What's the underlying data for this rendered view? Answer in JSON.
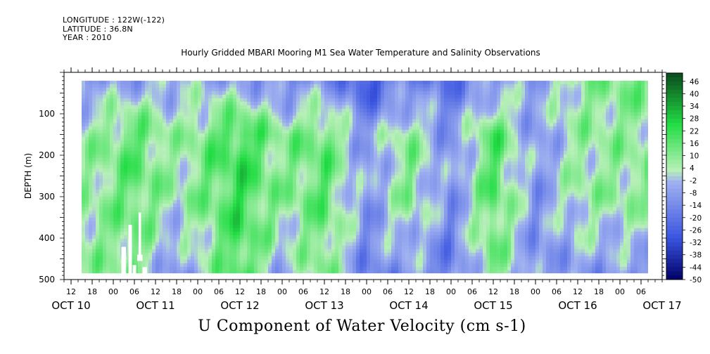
{
  "meta": {
    "longitude": "LONGITUDE : 122W(-122)",
    "latitude": "LATITUDE : 36.8N",
    "year": "YEAR : 2010"
  },
  "title": "Hourly Gridded MBARI Mooring M1 Sea Water Temperature and Salinity Observations",
  "subtitle": "U Component of Water Velocity (cm s-1)",
  "chart_data": {
    "type": "heatmap",
    "title": "Hourly Gridded MBARI Mooring M1 Sea Water Temperature and Salinity Observations",
    "xlabel": "",
    "ylabel": "DEPTH (m)",
    "ylim": [
      500,
      0
    ],
    "y_ticks": [
      100,
      200,
      300,
      400,
      500
    ],
    "x_hour_ticks": [
      "12",
      "18",
      "00",
      "06",
      "12",
      "18",
      "00",
      "06",
      "12",
      "18",
      "00",
      "06",
      "12",
      "18",
      "00",
      "06",
      "12",
      "18",
      "00",
      "06",
      "12",
      "18",
      "00",
      "06",
      "12",
      "18",
      "00",
      "06"
    ],
    "x_day_labels": [
      "OCT 10",
      "OCT 11",
      "OCT 12",
      "OCT 13",
      "OCT 14",
      "OCT 15",
      "OCT 16",
      "OCT 17"
    ],
    "data_extent": {
      "start": "OCT 10 15:00",
      "end": "OCT 17 08:00",
      "depth_top": 20,
      "depth_bottom": 485
    },
    "colorbar": {
      "levels": [
        46,
        40,
        34,
        28,
        22,
        16,
        10,
        4,
        -2,
        -8,
        -14,
        -20,
        -26,
        -32,
        -38,
        -44,
        -50
      ],
      "min": -50,
      "max": 50,
      "colors": {
        "strong_negative": "#000066",
        "negative": "#3a54e0",
        "weak_negative": "#9fb0f0",
        "weak_positive": "#b8f0b8",
        "positive": "#22dd44",
        "strong_positive": "#0a4a1c"
      }
    },
    "u_velocity_by_period": [
      {
        "period": "OCT 10 18:00",
        "surface": -8,
        "mid": 6,
        "deep": 8
      },
      {
        "period": "OCT 11 06:00",
        "surface": -6,
        "mid": 16,
        "deep": 10
      },
      {
        "period": "OCT 11 18:00",
        "surface": -4,
        "mid": 4,
        "deep": -12
      },
      {
        "period": "OCT 12 12:00",
        "surface": -6,
        "mid": 22,
        "deep": 20
      },
      {
        "period": "OCT 13 00:00",
        "surface": -14,
        "mid": 8,
        "deep": -6
      },
      {
        "period": "OCT 13 12:00",
        "surface": -10,
        "mid": 16,
        "deep": 12
      },
      {
        "period": "OCT 14 00:00",
        "surface": -28,
        "mid": -10,
        "deep": -16
      },
      {
        "period": "OCT 14 12:00",
        "surface": -14,
        "mid": 10,
        "deep": -8
      },
      {
        "period": "OCT 15 00:00",
        "surface": -20,
        "mid": -12,
        "deep": -18
      },
      {
        "period": "OCT 15 12:00",
        "surface": -8,
        "mid": 18,
        "deep": 12
      },
      {
        "period": "OCT 16 00:00",
        "surface": -6,
        "mid": -10,
        "deep": -12
      },
      {
        "period": "OCT 16 12:00",
        "surface": 8,
        "mid": 6,
        "deep": -8
      },
      {
        "period": "OCT 17 06:00",
        "surface": 12,
        "mid": 8,
        "deep": -10
      }
    ]
  }
}
